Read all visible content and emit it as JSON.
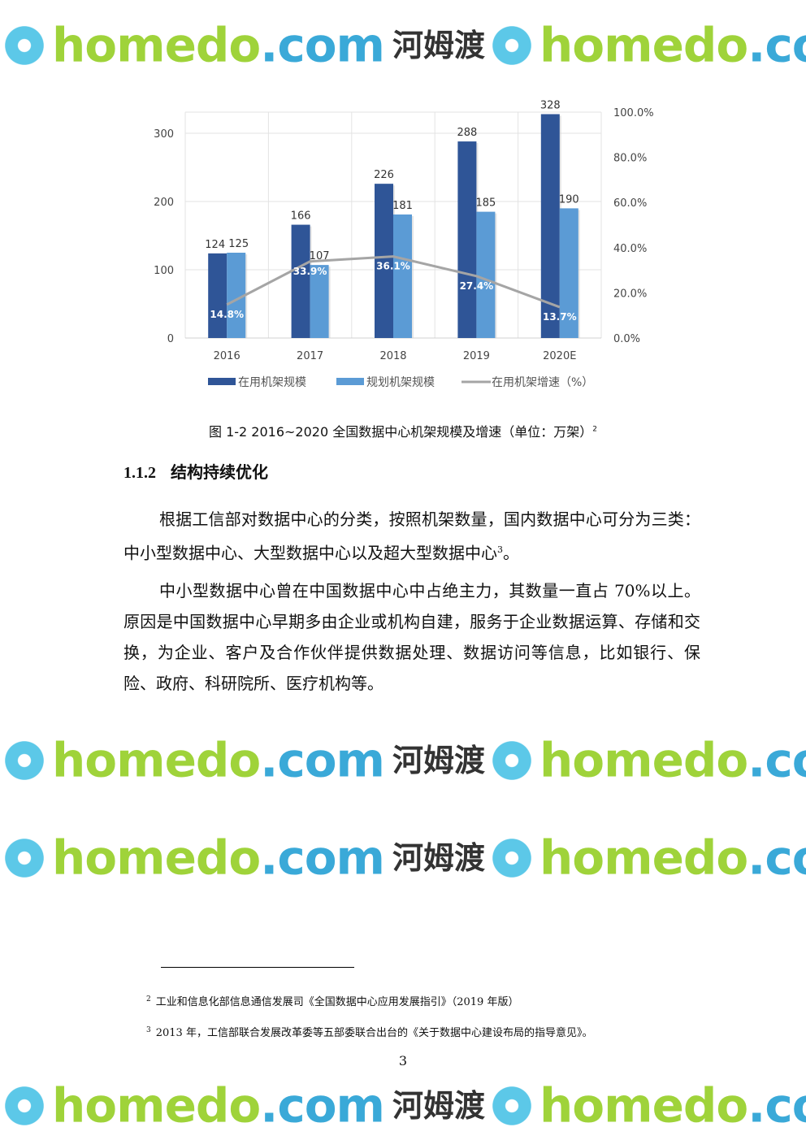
{
  "chart_data": {
    "type": "bar",
    "categories": [
      "2016",
      "2017",
      "2018",
      "2019",
      "2020E"
    ],
    "series": [
      {
        "name": "在用机架规模",
        "values": [
          124,
          166,
          226,
          288,
          328
        ],
        "color": "#2f5597",
        "axis": "left"
      },
      {
        "name": "规划机架规模",
        "values": [
          125,
          107,
          181,
          185,
          190
        ],
        "color": "#5b9bd5",
        "axis": "left"
      },
      {
        "name": "在用机架增速（%）",
        "type": "line",
        "values": [
          14.8,
          33.9,
          36.1,
          27.4,
          13.7
        ],
        "labels": [
          "14.8%",
          "33.9%",
          "36.1%",
          "27.4%",
          "13.7%"
        ],
        "color": "#a5a5a5",
        "axis": "right"
      }
    ],
    "left_ticks": [
      "0",
      "100",
      "200",
      "300"
    ],
    "right_ticks": [
      "0.0%",
      "20.0%",
      "40.0%",
      "60.0%",
      "80.0%",
      "100.0%"
    ],
    "ylim": [
      0,
      330
    ],
    "y2lim": [
      0,
      100
    ],
    "grid": true,
    "legend": "bottom"
  },
  "caption": {
    "label": "图  1-2 2016~2020 全国数据中心机架规模及增速（单位：万架）",
    "note": "2"
  },
  "section": {
    "number": "1.1.2",
    "title": "结构持续优化"
  },
  "paragraphs": [
    {
      "text": "根据工信部对数据中心的分类，按照机架数量，国内数据中心可分为三类：中小型数据中心、大型数据中心以及超大型数据中心",
      "note": "3",
      "end": "。"
    },
    {
      "text": "中小型数据中心曾在中国数据中心中占绝主力，其数量一直占 70%以上。原因是中国数据中心早期多由企业或机构自建，服务于企业数据运算、存储和交换，为企业、客户及合作伙伴提供数据处理、数据访问等信息，比如银行、保险、政府、科研院所、医疗机构等。"
    }
  ],
  "footnotes": [
    {
      "mark": "2",
      "text": "工业和信息化部信息通信发展司《全国数据中心应用发展指引》（2019 年版）"
    },
    {
      "mark": "3",
      "text": "2013 年，工信部联合发展改革委等五部委联合出台的《关于数据中心建设布局的指导意见》。"
    }
  ],
  "page_number": "3",
  "watermark": {
    "brand": "homedo",
    "dot": ".com",
    "cn": "河姆渡"
  }
}
